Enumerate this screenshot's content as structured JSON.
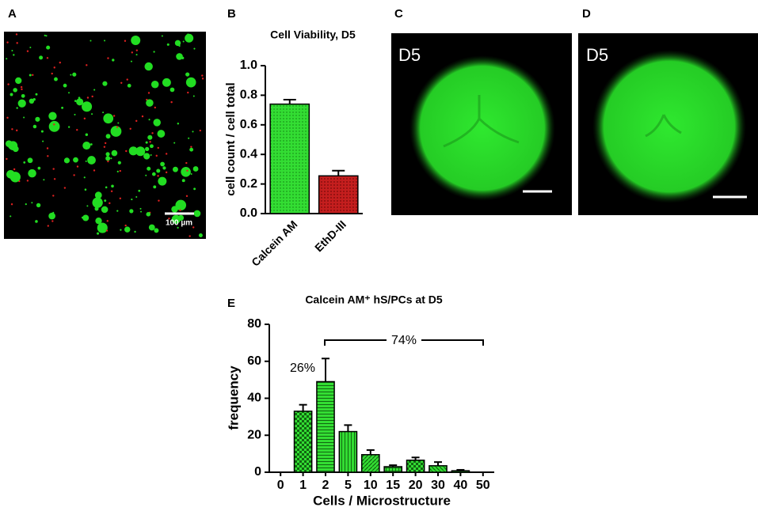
{
  "panel_labels": [
    "A",
    "B",
    "C",
    "D",
    "E"
  ],
  "images": [
    {
      "scale_bar": "100 µm"
    },
    {
      "label": "D5"
    },
    {
      "label": "D5"
    }
  ],
  "chart_data": [
    {
      "type": "bar",
      "title": "Cell  Viability, D5",
      "ylabel": "cell count / cell total",
      "categories": [
        "Calcein AM",
        "EthD-III"
      ],
      "values": [
        0.74,
        0.255
      ],
      "errors": [
        0.03,
        0.035
      ],
      "colors": [
        "#33dd33",
        "#c41e1e"
      ],
      "ylim": [
        0,
        1
      ],
      "yticks": [
        {
          "value": 0,
          "label": "0.0"
        },
        0.2,
        0.4,
        0.6,
        0.8,
        {
          "value": 1,
          "label": "1.0"
        }
      ]
    },
    {
      "type": "bar",
      "title": "Calcein AM⁺ hS/PCs at D5",
      "xlabel": "Cells / Microstructure",
      "ylabel": "frequency",
      "categories": [
        "0",
        "1",
        "2",
        "5",
        "10",
        "15",
        "20",
        "30",
        "40",
        "50"
      ],
      "values": [
        null,
        33,
        49,
        22,
        9.5,
        3,
        6.5,
        3.5,
        0.8,
        null
      ],
      "errors": [
        null,
        3.5,
        12.5,
        3.5,
        2.5,
        0.8,
        1.5,
        2,
        0.5,
        null
      ],
      "color": "#33dd33",
      "ylim": [
        0,
        80
      ],
      "yticks": [
        0,
        20,
        40,
        60,
        80
      ],
      "annotations": [
        "26%",
        "74%"
      ]
    }
  ]
}
